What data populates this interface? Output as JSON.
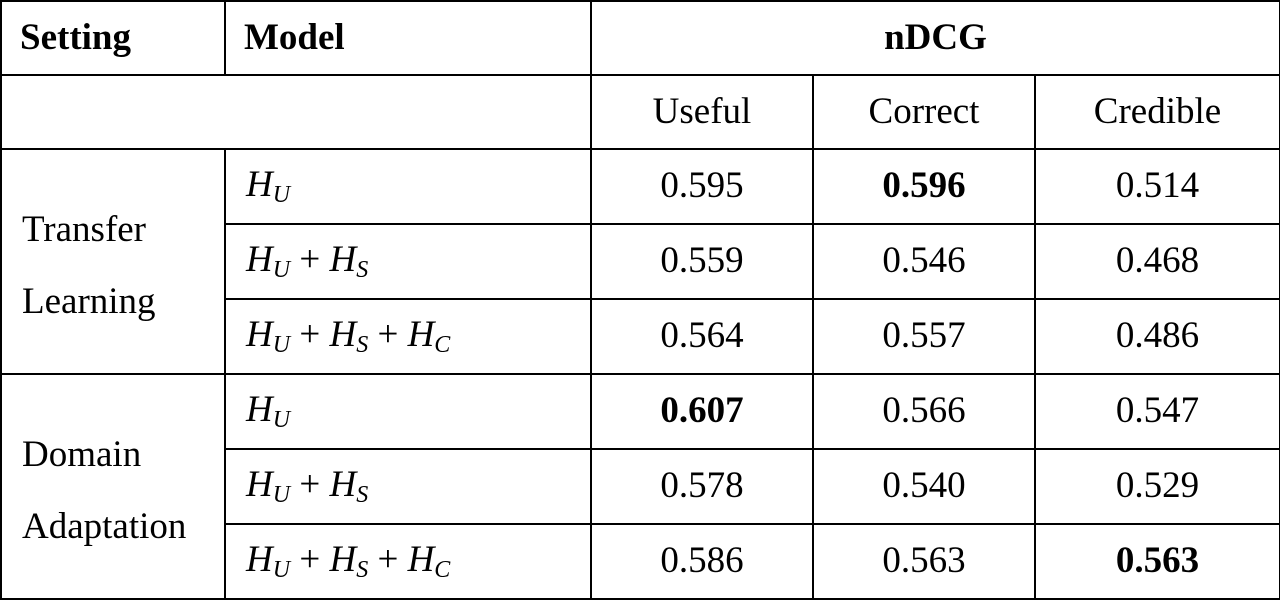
{
  "header": {
    "setting": "Setting",
    "model": "Model",
    "metric": "nDCG"
  },
  "columns": [
    "Useful",
    "Correct",
    "Credible"
  ],
  "groups": [
    {
      "setting_lines": [
        "Transfer",
        "Learning"
      ],
      "rows": [
        {
          "model": [
            "U"
          ],
          "values": [
            "0.595",
            "0.596",
            "0.514"
          ],
          "bold": [
            false,
            true,
            false
          ]
        },
        {
          "model": [
            "U",
            "S"
          ],
          "values": [
            "0.559",
            "0.546",
            "0.468"
          ],
          "bold": [
            false,
            false,
            false
          ]
        },
        {
          "model": [
            "U",
            "S",
            "C"
          ],
          "values": [
            "0.564",
            "0.557",
            "0.486"
          ],
          "bold": [
            false,
            false,
            false
          ]
        }
      ]
    },
    {
      "setting_lines": [
        "Domain",
        "Adaptation"
      ],
      "rows": [
        {
          "model": [
            "U"
          ],
          "values": [
            "0.607",
            "0.566",
            "0.547"
          ],
          "bold": [
            true,
            false,
            false
          ]
        },
        {
          "model": [
            "U",
            "S"
          ],
          "values": [
            "0.578",
            "0.540",
            "0.529"
          ],
          "bold": [
            false,
            false,
            false
          ]
        },
        {
          "model": [
            "U",
            "S",
            "C"
          ],
          "values": [
            "0.586",
            "0.563",
            "0.563"
          ],
          "bold": [
            false,
            false,
            true
          ]
        }
      ]
    }
  ]
}
